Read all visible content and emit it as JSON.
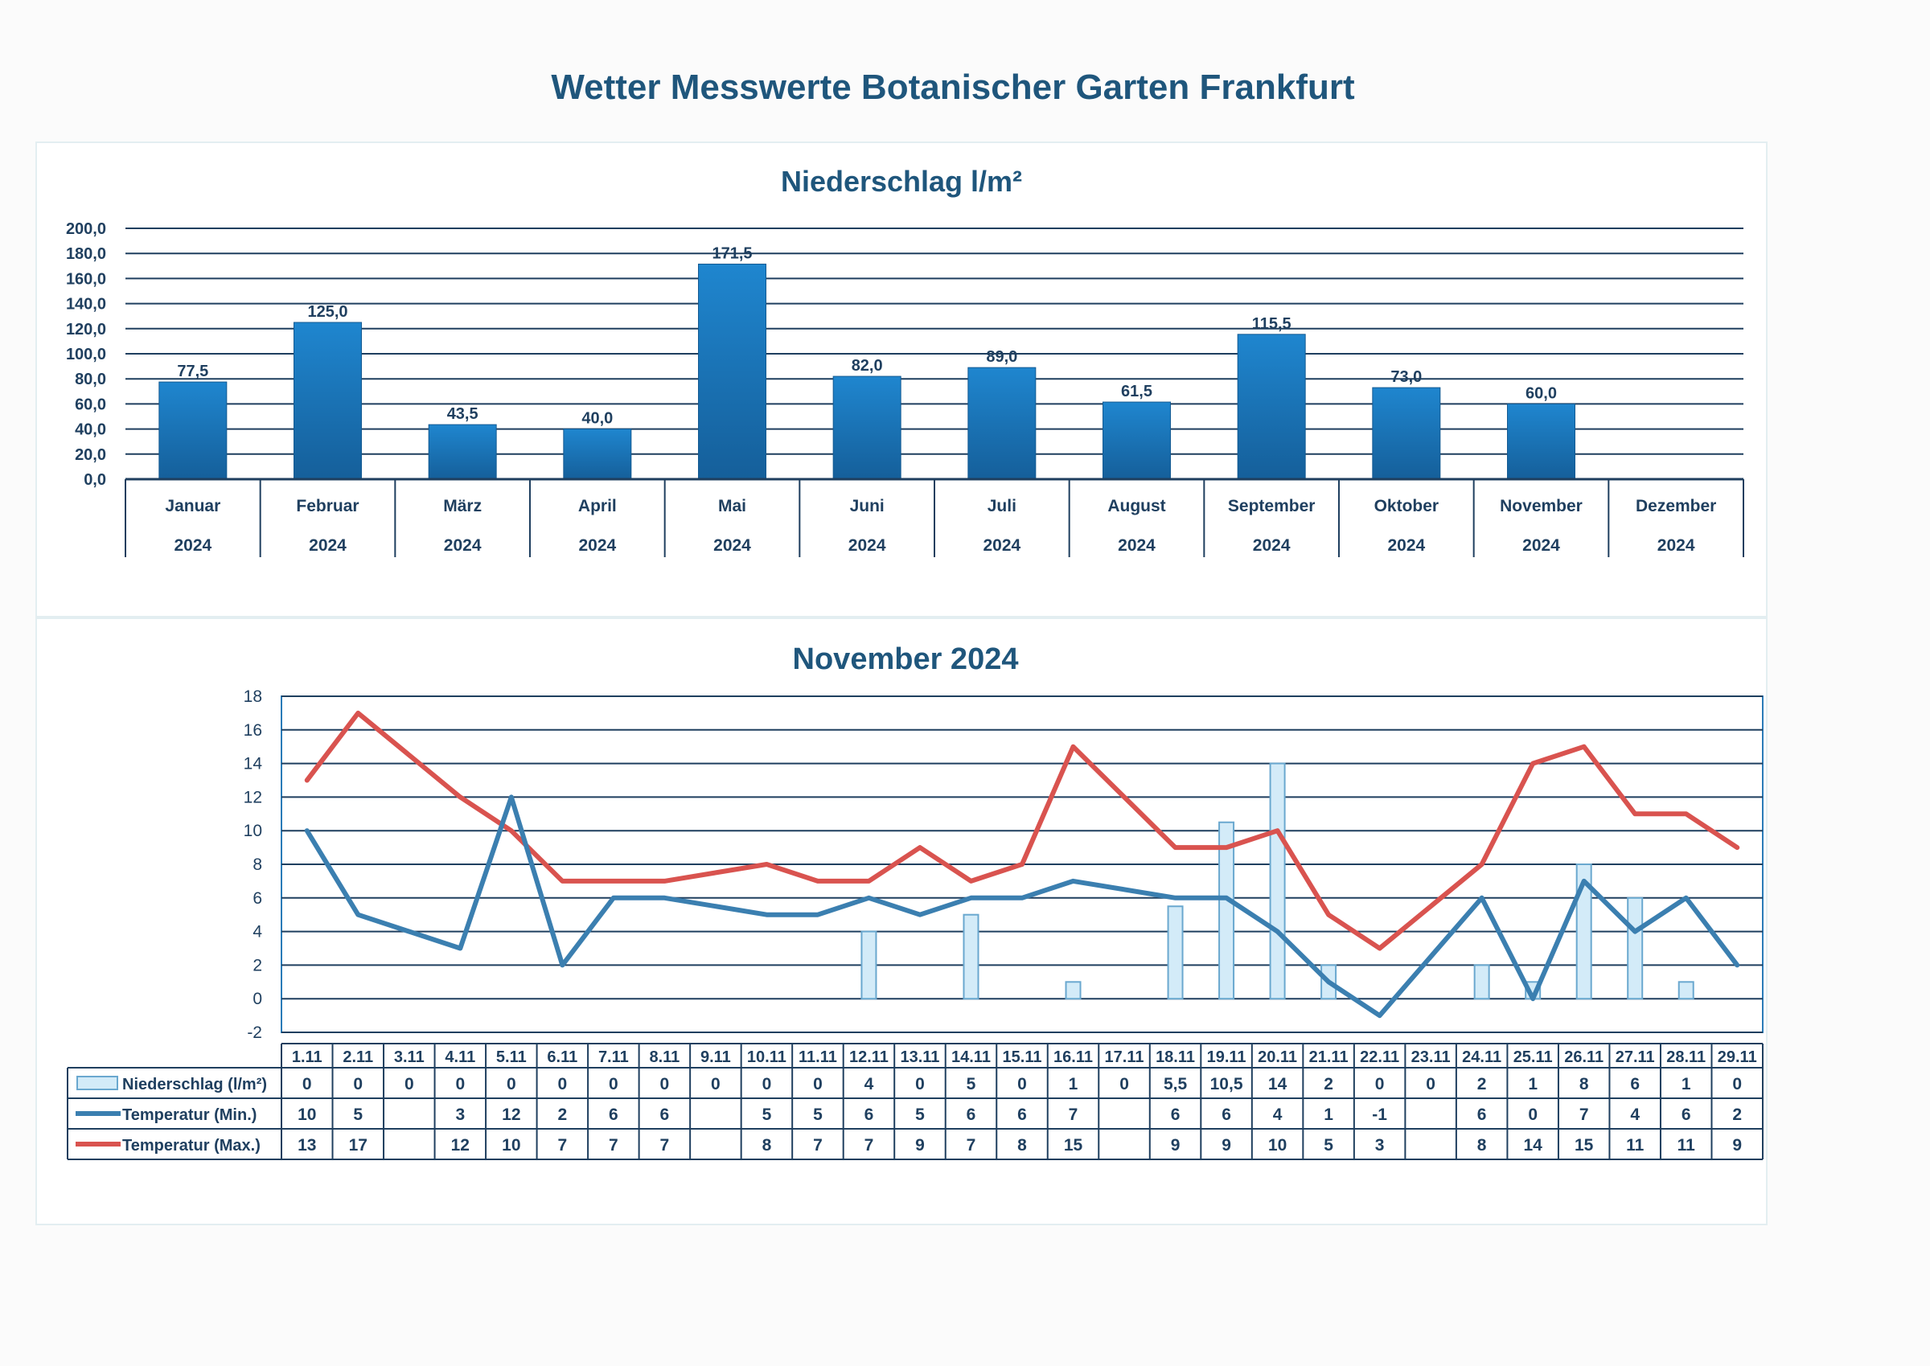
{
  "page": {
    "title": "Wetter Messwerte Botanischer Garten Frankfurt"
  },
  "colors": {
    "bar_fill": "#1a73b8",
    "grid": "#1f3f5f",
    "axis_text": "#1f3f5f",
    "rain_bar_fill": "#d3ebf8",
    "rain_bar_stroke": "#6aa8cf",
    "temp_min": "#3b7fb0",
    "temp_max": "#d9534f"
  },
  "chart_data": [
    {
      "type": "bar",
      "title": "Niederschlag l/m²",
      "categories": [
        "Januar",
        "Februar",
        "März",
        "April",
        "Mai",
        "Juni",
        "Juli",
        "August",
        "September",
        "Oktober",
        "November",
        "Dezember"
      ],
      "category_year": "2024",
      "values": [
        77.5,
        125.0,
        43.5,
        40.0,
        171.5,
        82.0,
        89.0,
        61.5,
        115.5,
        73.0,
        60.0,
        null
      ],
      "value_labels": [
        "77,5",
        "125,0",
        "43,5",
        "40,0",
        "171,5",
        "82,0",
        "89,0",
        "61,5",
        "115,5",
        "73,0",
        "60,0",
        ""
      ],
      "ylim": [
        0,
        200
      ],
      "yticks": [
        "0,0",
        "20,0",
        "40,0",
        "60,0",
        "80,0",
        "100,0",
        "120,0",
        "140,0",
        "160,0",
        "180,0",
        "200,0"
      ],
      "grid": true
    },
    {
      "type": "bar+line",
      "title": "November 2024",
      "categories": [
        "1.11",
        "2.11",
        "3.11",
        "4.11",
        "5.11",
        "6.11",
        "7.11",
        "8.11",
        "9.11",
        "10.11",
        "11.11",
        "12.11",
        "13.11",
        "14.11",
        "15.11",
        "16.11",
        "17.11",
        "18.11",
        "19.11",
        "20.11",
        "21.11",
        "22.11",
        "23.11",
        "24.11",
        "25.11",
        "26.11",
        "27.11",
        "28.11",
        "29.11"
      ],
      "ylim": [
        -2,
        18
      ],
      "yticks": [
        "-2",
        "0",
        "2",
        "4",
        "6",
        "8",
        "10",
        "12",
        "14",
        "16",
        "18"
      ],
      "grid": true,
      "series": [
        {
          "name": "Niederschlag (l/m²)",
          "kind": "bar",
          "values": [
            0,
            0,
            0,
            0,
            0,
            0,
            0,
            0,
            0,
            0,
            0,
            4,
            0,
            5,
            0,
            1,
            0,
            5.5,
            10.5,
            14,
            2,
            0,
            0,
            2,
            1,
            8,
            6,
            1,
            0
          ],
          "labels": [
            "0",
            "0",
            "0",
            "0",
            "0",
            "0",
            "0",
            "0",
            "0",
            "0",
            "0",
            "4",
            "0",
            "5",
            "0",
            "1",
            "0",
            "5,5",
            "10,5",
            "14",
            "2",
            "0",
            "0",
            "2",
            "1",
            "8",
            "6",
            "1",
            "0"
          ]
        },
        {
          "name": "Temperatur (Min.)",
          "kind": "line",
          "values": [
            10,
            5,
            null,
            3,
            12,
            2,
            6,
            6,
            null,
            5,
            5,
            6,
            5,
            6,
            6,
            7,
            null,
            6,
            6,
            4,
            1,
            -1,
            null,
            6,
            0,
            7,
            4,
            6,
            2
          ],
          "labels": [
            "10",
            "5",
            "",
            "3",
            "12",
            "2",
            "6",
            "6",
            "",
            "5",
            "5",
            "6",
            "5",
            "6",
            "6",
            "7",
            "",
            "6",
            "6",
            "4",
            "1",
            "-1",
            "",
            "6",
            "0",
            "7",
            "4",
            "6",
            "2"
          ]
        },
        {
          "name": "Temperatur (Max.)",
          "kind": "line",
          "values": [
            13,
            17,
            null,
            12,
            10,
            7,
            7,
            7,
            null,
            8,
            7,
            7,
            9,
            7,
            8,
            15,
            null,
            9,
            9,
            10,
            5,
            3,
            null,
            8,
            14,
            15,
            11,
            11,
            9
          ],
          "labels": [
            "13",
            "17",
            "",
            "12",
            "10",
            "7",
            "7",
            "7",
            "",
            "8",
            "7",
            "7",
            "9",
            "7",
            "8",
            "15",
            "",
            "9",
            "9",
            "10",
            "5",
            "3",
            "",
            "8",
            "14",
            "15",
            "11",
            "11",
            "9"
          ]
        }
      ]
    }
  ]
}
